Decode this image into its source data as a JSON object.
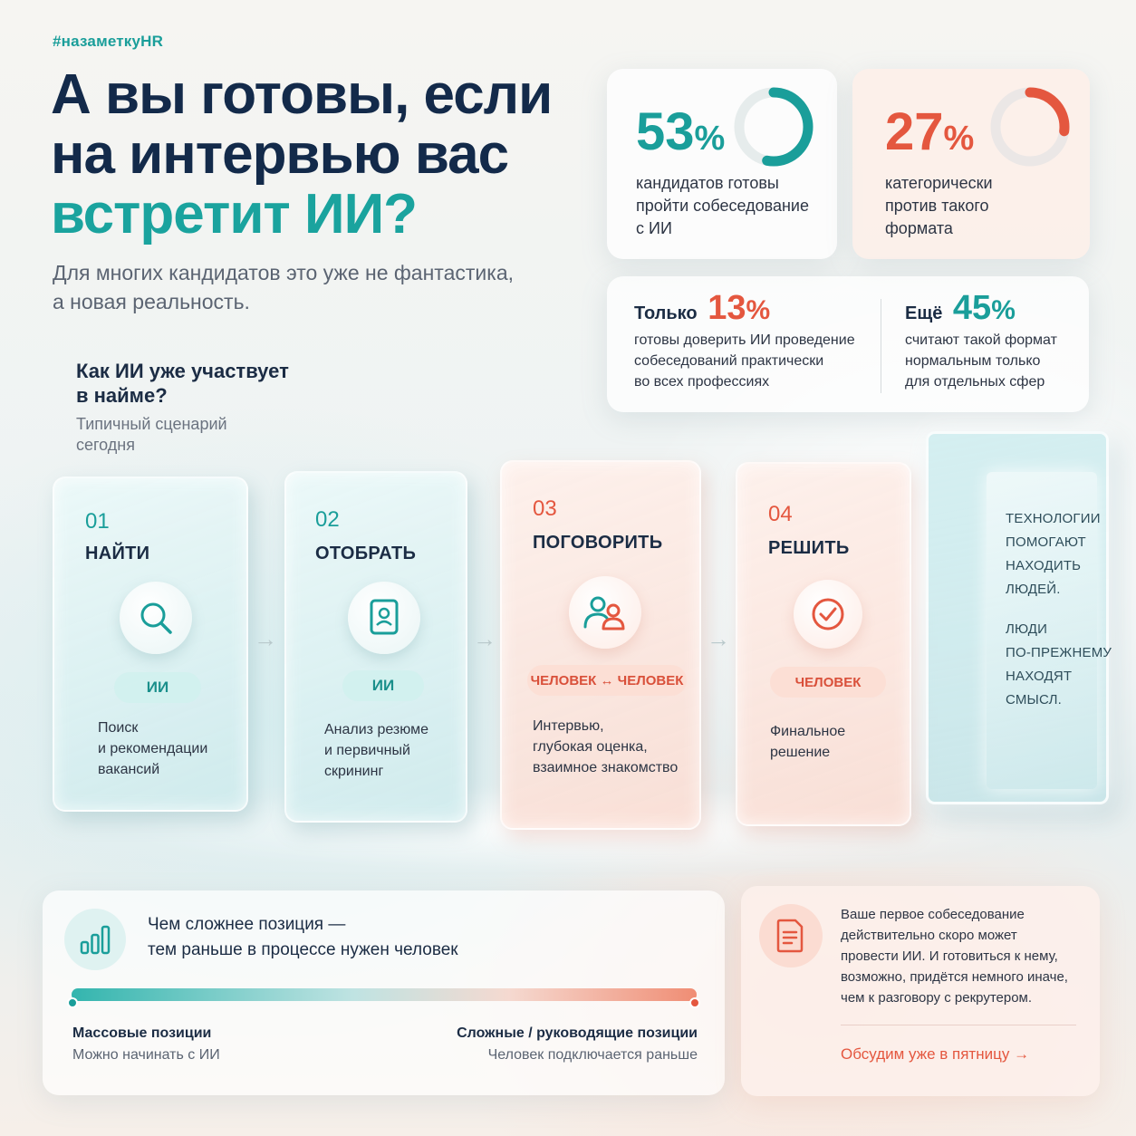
{
  "header": {
    "hashtag": "#назаметкуHR",
    "title_line1": "А вы готовы, если",
    "title_line2": "на интервью вас",
    "title_accent": "встретит ИИ?",
    "subtitle_line1": "Для многих кандидатов это уже не фантастика,",
    "subtitle_line2": "а новая реальность."
  },
  "stats": {
    "ready": {
      "value": "53",
      "unit": "%",
      "line1": "кандидатов готовы",
      "line2": "пройти собеседование",
      "line3": "с ИИ",
      "fraction": 0.53,
      "color": "#1a9e9a"
    },
    "against": {
      "value": "27",
      "unit": "%",
      "line1": "категорически",
      "line2": "против такого",
      "line3": "формата",
      "fraction": 0.27,
      "color": "#e4573f"
    },
    "only": {
      "prefix": "Только",
      "value": "13",
      "unit": "%",
      "line1": "готовы доверить ИИ проведение",
      "line2": "собеседований практически",
      "line3": "во всех профессиях"
    },
    "more": {
      "prefix": "Ещё",
      "value": "45",
      "unit": "%",
      "line1": "считают такой формат",
      "line2": "нормальным только",
      "line3": "для отдельных сфер"
    }
  },
  "scenario": {
    "title_line1": "Как ИИ уже участвует",
    "title_line2": "в найме?",
    "subtitle_line1": "Типичный сценарий",
    "subtitle_line2": "сегодня",
    "stages": [
      {
        "num": "01",
        "name": "НАЙТИ",
        "icon": "search-icon",
        "actor": "ИИ",
        "desc1": "Поиск",
        "desc2": "и рекомендации",
        "desc3": "вакансий"
      },
      {
        "num": "02",
        "name": "ОТОБРАТЬ",
        "icon": "resume-icon",
        "actor": "ИИ",
        "desc1": "Анализ резюме",
        "desc2": "и первичный",
        "desc3": "скрининг"
      },
      {
        "num": "03",
        "name": "ПОГОВОРИТЬ",
        "icon": "people-icon",
        "actor": "ЧЕЛОВЕК ↔ ЧЕЛОВЕК",
        "desc1": "Интервью,",
        "desc2": "глубокая оценка,",
        "desc3": "взаимное знакомство"
      },
      {
        "num": "04",
        "name": "РЕШИТЬ",
        "icon": "check-circle-icon",
        "actor": "ЧЕЛОВЕК",
        "desc1": "Финальное",
        "desc2": "решение"
      }
    ],
    "arrow": "→",
    "mirror": {
      "l1": "ТЕХНОЛОГИИ",
      "l2": "ПОМОГАЮТ",
      "l3": "НАХОДИТЬ",
      "l4": "ЛЮДЕЙ.",
      "l5": "ЛЮДИ",
      "l6": "ПО-ПРЕЖНЕМУ",
      "l7": "НАХОДЯТ",
      "l8": "СМЫСЛ."
    }
  },
  "complexity": {
    "line1": "Чем сложнее позиция —",
    "line2": "тем раньше в процессе нужен человек",
    "left_title": "Массовые позиции",
    "left_sub": "Можно начинать с ИИ",
    "right_title": "Сложные / руководящие позиции",
    "right_sub": "Человек подключается раньше"
  },
  "note": {
    "line1": "Ваше первое собеседование",
    "line2": "действительно скоро может",
    "line3": "провести ИИ. И готовиться к нему,",
    "line4": "возможно, придётся немного иначе,",
    "line5": "чем к разговору с рекрутером.",
    "link": "Обсудим уже в пятницу →"
  },
  "colors": {
    "teal": "#1a9e9a",
    "coral": "#e4573f",
    "navy": "#132a4a"
  }
}
